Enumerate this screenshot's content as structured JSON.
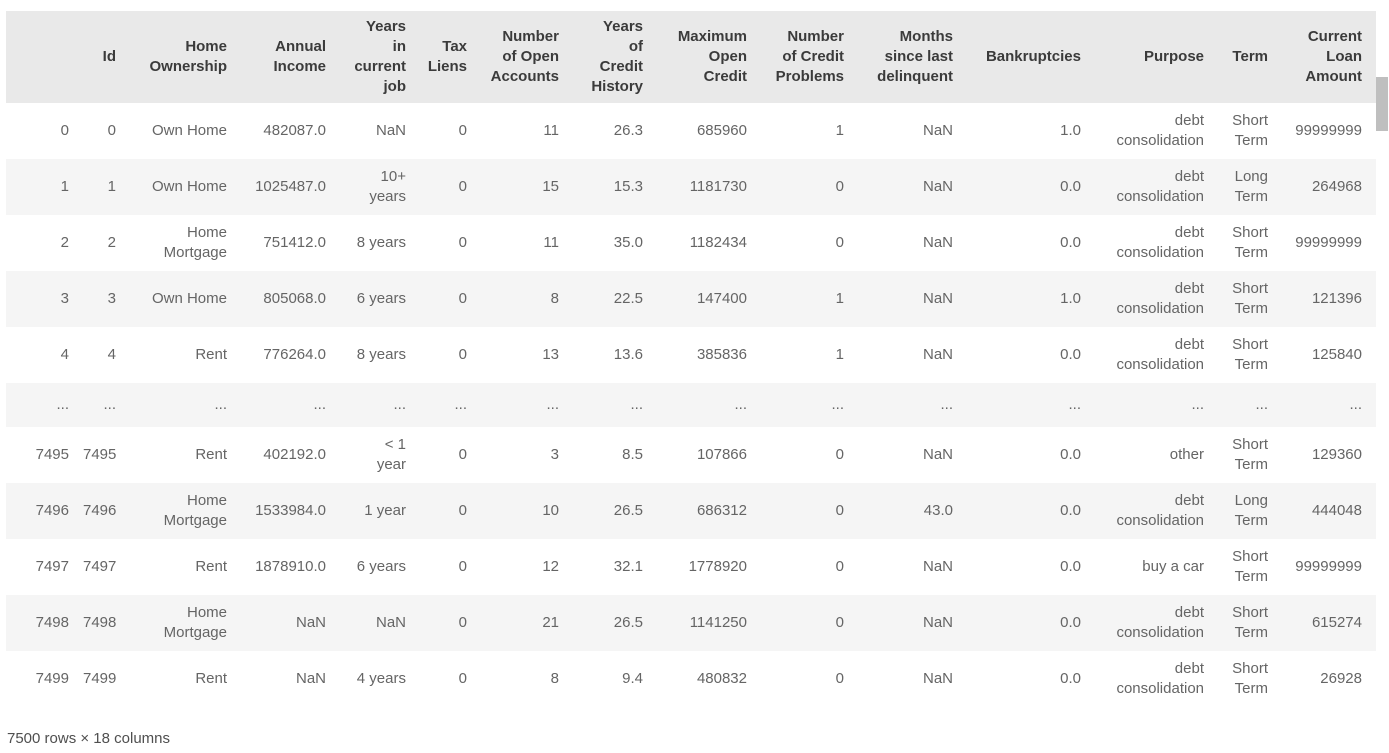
{
  "table": {
    "columns": [
      {
        "key": "index",
        "label": ""
      },
      {
        "key": "id",
        "label": "Id"
      },
      {
        "key": "home_ownership",
        "label": "Home\nOwnership"
      },
      {
        "key": "annual_income",
        "label": "Annual\nIncome"
      },
      {
        "key": "years_in_current_job",
        "label": "Years\nin\ncurrent\njob"
      },
      {
        "key": "tax_liens",
        "label": "Tax\nLiens"
      },
      {
        "key": "number_of_open_accounts",
        "label": "Number\nof Open\nAccounts"
      },
      {
        "key": "years_of_credit_history",
        "label": "Years\nof\nCredit\nHistory"
      },
      {
        "key": "maximum_open_credit",
        "label": "Maximum\nOpen\nCredit"
      },
      {
        "key": "number_of_credit_problems",
        "label": "Number\nof Credit\nProblems"
      },
      {
        "key": "months_since_last_delinquent",
        "label": "Months\nsince last\ndelinquent"
      },
      {
        "key": "bankruptcies",
        "label": "Bankruptcies"
      },
      {
        "key": "purpose",
        "label": "Purpose"
      },
      {
        "key": "term",
        "label": "Term"
      },
      {
        "key": "current_loan_amount",
        "label": "Current\nLoan\nAmount"
      }
    ],
    "rows": [
      [
        "0",
        "0",
        "Own Home",
        "482087.0",
        "NaN",
        "0",
        "11",
        "26.3",
        "685960",
        "1",
        "NaN",
        "1.0",
        "debt\nconsolidation",
        "Short\nTerm",
        "99999999"
      ],
      [
        "1",
        "1",
        "Own Home",
        "1025487.0",
        "10+\nyears",
        "0",
        "15",
        "15.3",
        "1181730",
        "0",
        "NaN",
        "0.0",
        "debt\nconsolidation",
        "Long\nTerm",
        "264968"
      ],
      [
        "2",
        "2",
        "Home\nMortgage",
        "751412.0",
        "8 years",
        "0",
        "11",
        "35.0",
        "1182434",
        "0",
        "NaN",
        "0.0",
        "debt\nconsolidation",
        "Short\nTerm",
        "99999999"
      ],
      [
        "3",
        "3",
        "Own Home",
        "805068.0",
        "6 years",
        "0",
        "8",
        "22.5",
        "147400",
        "1",
        "NaN",
        "1.0",
        "debt\nconsolidation",
        "Short\nTerm",
        "121396"
      ],
      [
        "4",
        "4",
        "Rent",
        "776264.0",
        "8 years",
        "0",
        "13",
        "13.6",
        "385836",
        "1",
        "NaN",
        "0.0",
        "debt\nconsolidation",
        "Short\nTerm",
        "125840"
      ],
      [
        "...",
        "...",
        "...",
        "...",
        "...",
        "...",
        "...",
        "...",
        "...",
        "...",
        "...",
        "...",
        "...",
        "...",
        "..."
      ],
      [
        "7495",
        "7495",
        "Rent",
        "402192.0",
        "< 1\nyear",
        "0",
        "3",
        "8.5",
        "107866",
        "0",
        "NaN",
        "0.0",
        "other",
        "Short\nTerm",
        "129360"
      ],
      [
        "7496",
        "7496",
        "Home\nMortgage",
        "1533984.0",
        "1 year",
        "0",
        "10",
        "26.5",
        "686312",
        "0",
        "43.0",
        "0.0",
        "debt\nconsolidation",
        "Long\nTerm",
        "444048"
      ],
      [
        "7497",
        "7497",
        "Rent",
        "1878910.0",
        "6 years",
        "0",
        "12",
        "32.1",
        "1778920",
        "0",
        "NaN",
        "0.0",
        "buy a car",
        "Short\nTerm",
        "99999999"
      ],
      [
        "7498",
        "7498",
        "Home\nMortgage",
        "NaN",
        "NaN",
        "0",
        "21",
        "26.5",
        "1141250",
        "0",
        "NaN",
        "0.0",
        "debt\nconsolidation",
        "Short\nTerm",
        "615274"
      ],
      [
        "7499",
        "7499",
        "Rent",
        "NaN",
        "4 years",
        "0",
        "8",
        "9.4",
        "480832",
        "0",
        "NaN",
        "0.0",
        "debt\nconsolidation",
        "Short\nTerm",
        "26928"
      ]
    ],
    "dots_row_index": 5,
    "footer": "7500 rows × 18 columns"
  },
  "colors": {
    "header_background": "#e9e9e9",
    "row_stripe": "#f5f5f5",
    "header_text": "#3b3b3b",
    "cell_text": "#656565",
    "footer_text": "#4f4f4f",
    "scrollbar_thumb": "#bfbfbf"
  }
}
